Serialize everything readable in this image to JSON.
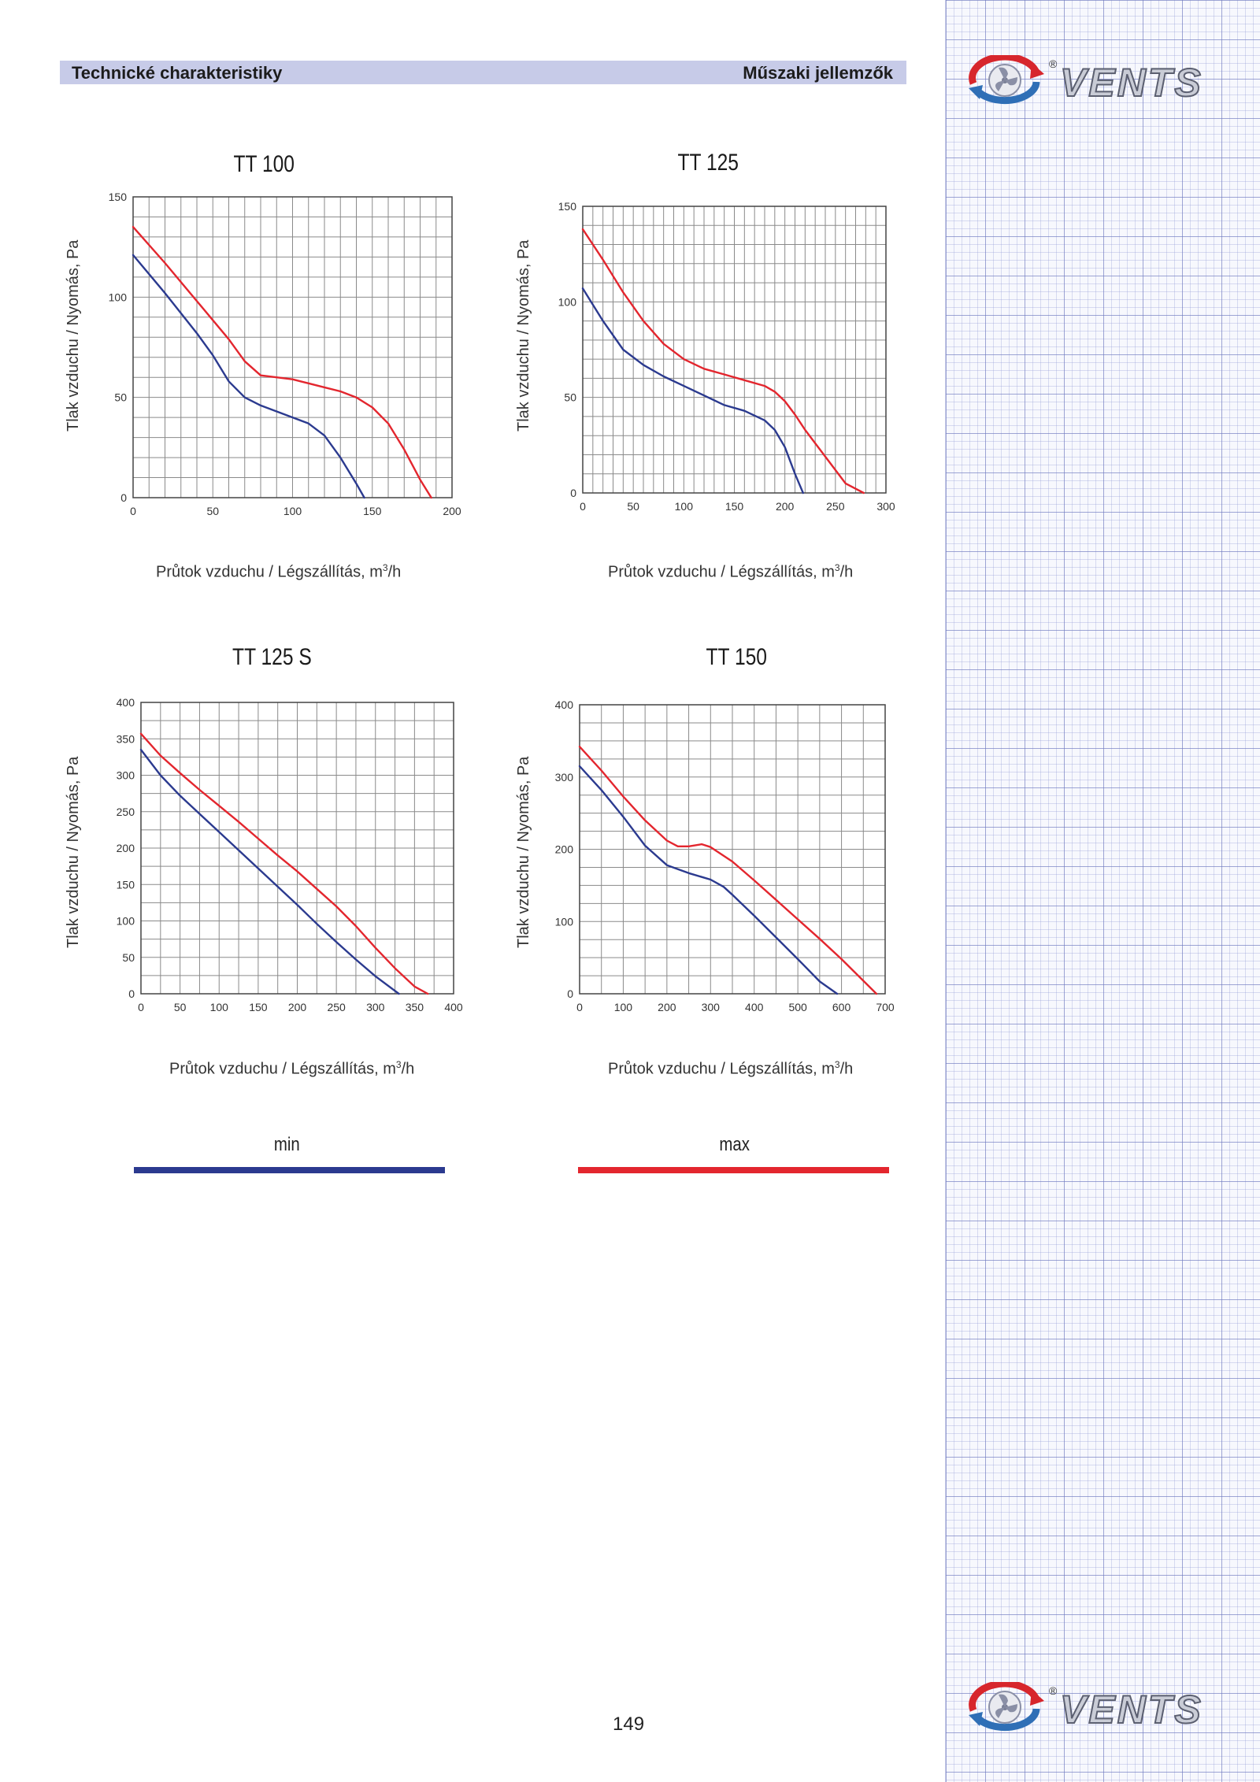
{
  "header": {
    "left": "Technické charakteristiky",
    "right": "Műszaki jellemzők"
  },
  "brand": {
    "name": "VENTS",
    "reg": "®"
  },
  "page_number": "149",
  "legend": [
    {
      "label": "min",
      "color": "#2b3a8f"
    },
    {
      "label": "max",
      "color": "#e3262e"
    }
  ],
  "colors": {
    "min": "#2b3a8f",
    "max": "#e3262e"
  },
  "chart_data": [
    {
      "type": "line",
      "title": "TT 100",
      "xlabel_main": "Průtok vzduchu / Légszállítás, m",
      "xlabel_sup": "3",
      "xlabel_end": "/h",
      "ylabel": "Tlak vzduchu / Nyomás, Pa",
      "xlim": [
        0,
        200
      ],
      "ylim": [
        0,
        150
      ],
      "xticks": [
        0,
        50,
        100,
        150,
        200
      ],
      "yticks": [
        0,
        50,
        100,
        150
      ],
      "xgrid": 20,
      "ygrid": 15,
      "series": [
        {
          "name": "min",
          "points": [
            [
              0,
              121
            ],
            [
              20,
              102
            ],
            [
              40,
              82
            ],
            [
              50,
              71
            ],
            [
              60,
              58
            ],
            [
              70,
              50
            ],
            [
              80,
              46
            ],
            [
              90,
              43
            ],
            [
              100,
              40
            ],
            [
              110,
              37
            ],
            [
              120,
              31
            ],
            [
              130,
              20
            ],
            [
              140,
              7
            ],
            [
              145,
              0
            ]
          ]
        },
        {
          "name": "max",
          "points": [
            [
              0,
              135
            ],
            [
              20,
              117
            ],
            [
              40,
              98
            ],
            [
              60,
              79
            ],
            [
              70,
              68
            ],
            [
              80,
              61
            ],
            [
              90,
              60
            ],
            [
              100,
              59
            ],
            [
              110,
              57
            ],
            [
              120,
              55
            ],
            [
              130,
              53
            ],
            [
              140,
              50
            ],
            [
              150,
              45
            ],
            [
              160,
              37
            ],
            [
              170,
              24
            ],
            [
              180,
              9
            ],
            [
              187,
              0
            ]
          ]
        }
      ]
    },
    {
      "type": "line",
      "title": "TT 125",
      "xlabel_main": "Průtok vzduchu / Légszállítás, m",
      "xlabel_sup": "3",
      "xlabel_end": "/h",
      "ylabel": "Tlak vzduchu / Nyomás, Pa",
      "xlim": [
        0,
        300
      ],
      "ylim": [
        0,
        150
      ],
      "xticks": [
        0,
        50,
        100,
        150,
        200,
        250,
        300
      ],
      "yticks": [
        0,
        50,
        100,
        150
      ],
      "xgrid": 30,
      "ygrid": 15,
      "series": [
        {
          "name": "min",
          "points": [
            [
              0,
              107
            ],
            [
              20,
              90
            ],
            [
              40,
              75
            ],
            [
              60,
              67
            ],
            [
              80,
              61
            ],
            [
              100,
              56
            ],
            [
              120,
              51
            ],
            [
              140,
              46
            ],
            [
              160,
              43
            ],
            [
              180,
              38
            ],
            [
              190,
              33
            ],
            [
              200,
              24
            ],
            [
              210,
              10
            ],
            [
              218,
              0
            ]
          ]
        },
        {
          "name": "max",
          "points": [
            [
              0,
              138
            ],
            [
              20,
              122
            ],
            [
              40,
              105
            ],
            [
              60,
              90
            ],
            [
              80,
              78
            ],
            [
              100,
              70
            ],
            [
              120,
              65
            ],
            [
              140,
              62
            ],
            [
              160,
              59
            ],
            [
              180,
              56
            ],
            [
              190,
              53
            ],
            [
              200,
              48
            ],
            [
              210,
              41
            ],
            [
              220,
              33
            ],
            [
              240,
              19
            ],
            [
              260,
              5
            ],
            [
              278,
              0
            ]
          ]
        }
      ]
    },
    {
      "type": "line",
      "title": "TT 125 S",
      "xlabel_main": "Průtok vzduchu / Légszállítás, m",
      "xlabel_sup": "3",
      "xlabel_end": "/h",
      "ylabel": "Tlak vzduchu / Nyomás, Pa",
      "xlim": [
        0,
        400
      ],
      "ylim": [
        0,
        400
      ],
      "xticks": [
        0,
        50,
        100,
        150,
        200,
        250,
        300,
        350,
        400
      ],
      "yticks": [
        0,
        50,
        100,
        150,
        200,
        250,
        300,
        350,
        400
      ],
      "xgrid": 16,
      "ygrid": 16,
      "series": [
        {
          "name": "min",
          "points": [
            [
              0,
              335
            ],
            [
              25,
              300
            ],
            [
              50,
              272
            ],
            [
              75,
              247
            ],
            [
              100,
              222
            ],
            [
              125,
              197
            ],
            [
              150,
              172
            ],
            [
              175,
              147
            ],
            [
              200,
              122
            ],
            [
              225,
              96
            ],
            [
              250,
              71
            ],
            [
              275,
              47
            ],
            [
              300,
              24
            ],
            [
              330,
              0
            ]
          ]
        },
        {
          "name": "max",
          "points": [
            [
              0,
              357
            ],
            [
              25,
              327
            ],
            [
              50,
              303
            ],
            [
              75,
              280
            ],
            [
              100,
              258
            ],
            [
              125,
              236
            ],
            [
              150,
              213
            ],
            [
              175,
              190
            ],
            [
              200,
              168
            ],
            [
              225,
              144
            ],
            [
              250,
              120
            ],
            [
              275,
              93
            ],
            [
              300,
              63
            ],
            [
              325,
              35
            ],
            [
              350,
              10
            ],
            [
              367,
              0
            ]
          ]
        }
      ]
    },
    {
      "type": "line",
      "title": "TT 150",
      "xlabel_main": "Průtok vzduchu / Légszállítás, m",
      "xlabel_sup": "3",
      "xlabel_end": "/h",
      "ylabel": "Tlak vzduchu / Nyomás, Pa",
      "xlim": [
        0,
        700
      ],
      "ylim": [
        0,
        400
      ],
      "xticks": [
        0,
        100,
        200,
        300,
        400,
        500,
        600,
        700
      ],
      "yticks": [
        0,
        100,
        200,
        300,
        400
      ],
      "xgrid": 14,
      "ygrid": 16,
      "series": [
        {
          "name": "min",
          "points": [
            [
              0,
              315
            ],
            [
              50,
              282
            ],
            [
              100,
              245
            ],
            [
              150,
              205
            ],
            [
              200,
              178
            ],
            [
              250,
              167
            ],
            [
              300,
              158
            ],
            [
              330,
              148
            ],
            [
              350,
              137
            ],
            [
              400,
              108
            ],
            [
              450,
              78
            ],
            [
              500,
              48
            ],
            [
              550,
              17
            ],
            [
              590,
              0
            ]
          ]
        },
        {
          "name": "max",
          "points": [
            [
              0,
              342
            ],
            [
              50,
              309
            ],
            [
              100,
              273
            ],
            [
              150,
              240
            ],
            [
              200,
              212
            ],
            [
              225,
              204
            ],
            [
              250,
              204
            ],
            [
              280,
              207
            ],
            [
              300,
              203
            ],
            [
              350,
              183
            ],
            [
              400,
              157
            ],
            [
              450,
              130
            ],
            [
              500,
              103
            ],
            [
              550,
              76
            ],
            [
              600,
              48
            ],
            [
              650,
              18
            ],
            [
              680,
              0
            ]
          ]
        }
      ]
    }
  ]
}
